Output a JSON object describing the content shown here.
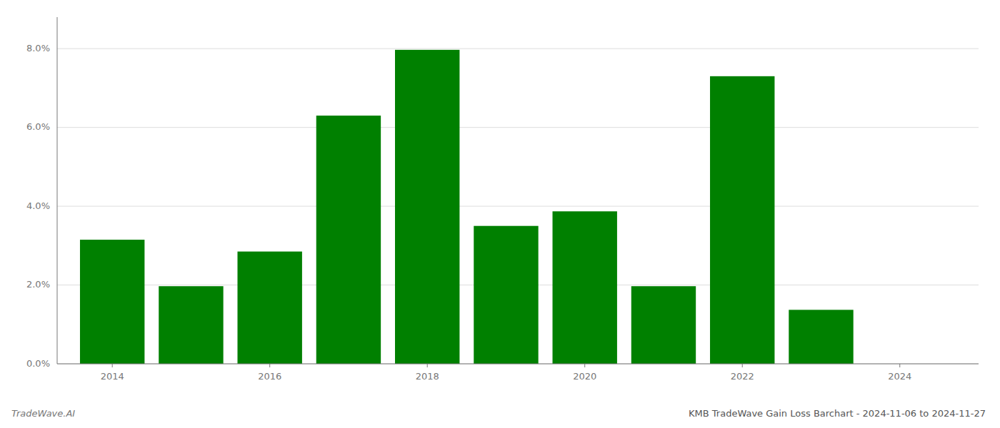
{
  "chart_data": {
    "type": "bar",
    "title": "KMB TradeWave Gain Loss Barchart - 2024-11-06 to 2024-11-27",
    "annotations": [
      "TradeWave.AI"
    ],
    "x": [
      2014,
      2015,
      2016,
      2017,
      2018,
      2019,
      2020,
      2021,
      2022,
      2023
    ],
    "values": [
      0.0315,
      0.0197,
      0.0285,
      0.063,
      0.0797,
      0.035,
      0.0387,
      0.0197,
      0.073,
      0.0137
    ],
    "color": "#008000",
    "xlim": [
      2013.3,
      2025.0
    ],
    "xticks": [
      2014,
      2016,
      2018,
      2020,
      2022,
      2024
    ],
    "ylim": [
      0,
      0.088
    ],
    "yticks": [
      {
        "value": 0.0,
        "label": "0.0%"
      },
      {
        "value": 0.02,
        "label": "2.0%"
      },
      {
        "value": 0.04,
        "label": "4.0%"
      },
      {
        "value": 0.06,
        "label": "6.0%"
      },
      {
        "value": 0.08,
        "label": "8.0%"
      }
    ],
    "grid": true
  }
}
